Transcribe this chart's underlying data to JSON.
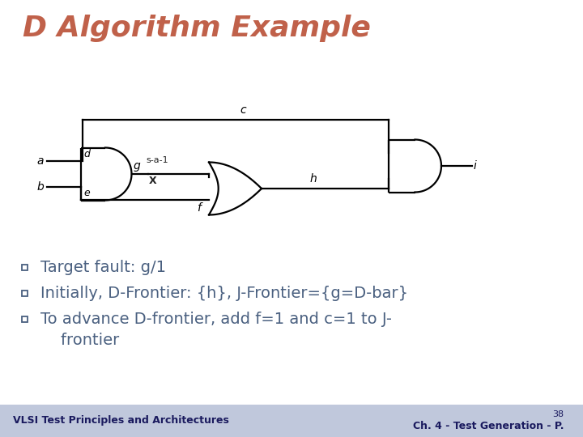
{
  "title": "D Algorithm Example",
  "title_color": "#c0614a",
  "title_fontsize": 26,
  "bg_color": "#ffffff",
  "footer_bg": "#c0c8dc",
  "footer_left": "VLSI Test Principles and Architectures",
  "footer_right": "Ch. 4 - Test Generation - P.",
  "footer_page": "38",
  "bullet_color": "#4a6080",
  "bullet_fontsize": 14,
  "circuit_color": "#000000",
  "label_fontsize": 10,
  "bullets": [
    "Target fault: g/1",
    "Initially, D-Frontier: {h}, J-Frontier={g=D-bar}",
    "To advance D-frontier, add f=1 and c=1 to J-frontier"
  ]
}
